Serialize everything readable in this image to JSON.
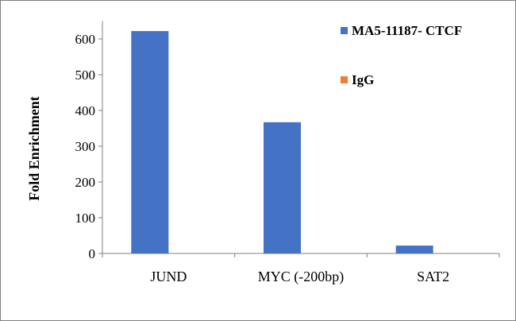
{
  "chart_data": {
    "type": "bar",
    "categories": [
      "JUND",
      "MYC (-200bp)",
      "SAT2"
    ],
    "series": [
      {
        "name": "MA5-11187- CTCF",
        "color": "#4472C4",
        "values": [
          622,
          367,
          22
        ]
      },
      {
        "name": "IgG",
        "color": "#ED7D31",
        "values": [
          0,
          0,
          0
        ]
      }
    ],
    "ylabel": "Fold Enrichment",
    "xlabel": "",
    "ylim": [
      0,
      650
    ],
    "yticks": [
      0,
      100,
      200,
      300,
      400,
      500,
      600
    ],
    "grid": false,
    "legend_position": "right"
  }
}
